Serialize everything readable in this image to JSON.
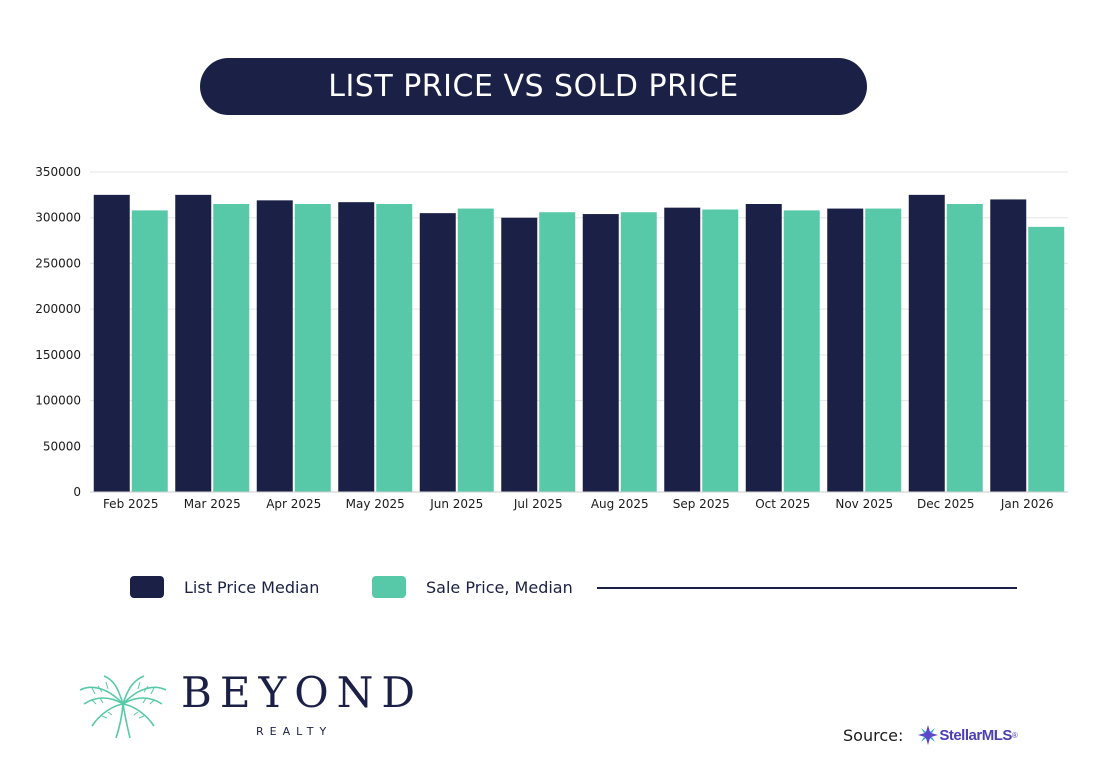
{
  "header": {
    "title": "LIST PRICE VS SOLD PRICE"
  },
  "chart_data": {
    "type": "bar",
    "title": "LIST PRICE VS SOLD PRICE",
    "categories": [
      "Feb 2025",
      "Mar 2025",
      "Apr 2025",
      "May 2025",
      "Jun 2025",
      "Jul 2025",
      "Aug 2025",
      "Sep 2025",
      "Oct 2025",
      "Nov 2025",
      "Dec 2025",
      "Jan 2026"
    ],
    "series": [
      {
        "name": "List Price Median",
        "color": "#1b2046",
        "values": [
          325000,
          325000,
          319000,
          317000,
          305000,
          300000,
          304000,
          311000,
          315000,
          310000,
          325000,
          320000
        ]
      },
      {
        "name": "Sale Price, Median",
        "color": "#57c9a8",
        "values": [
          308000,
          315000,
          315000,
          315000,
          310000,
          306000,
          306000,
          309000,
          308000,
          310000,
          315000,
          290000
        ]
      }
    ],
    "yticks": [
      0,
      50000,
      100000,
      150000,
      200000,
      250000,
      300000,
      350000
    ],
    "ylim": [
      0,
      350000
    ],
    "grid": true,
    "legend_position": "bottom"
  },
  "legend": {
    "items": [
      "List Price Median",
      "Sale Price, Median"
    ]
  },
  "branding": {
    "name": "BEYOND",
    "sub": "REALTY",
    "brand_color": "#1b2046",
    "accent_color": "#57c9a8"
  },
  "source": {
    "label": "Source:",
    "logo_text": "StellarMLS",
    "logo_mark": "®"
  }
}
